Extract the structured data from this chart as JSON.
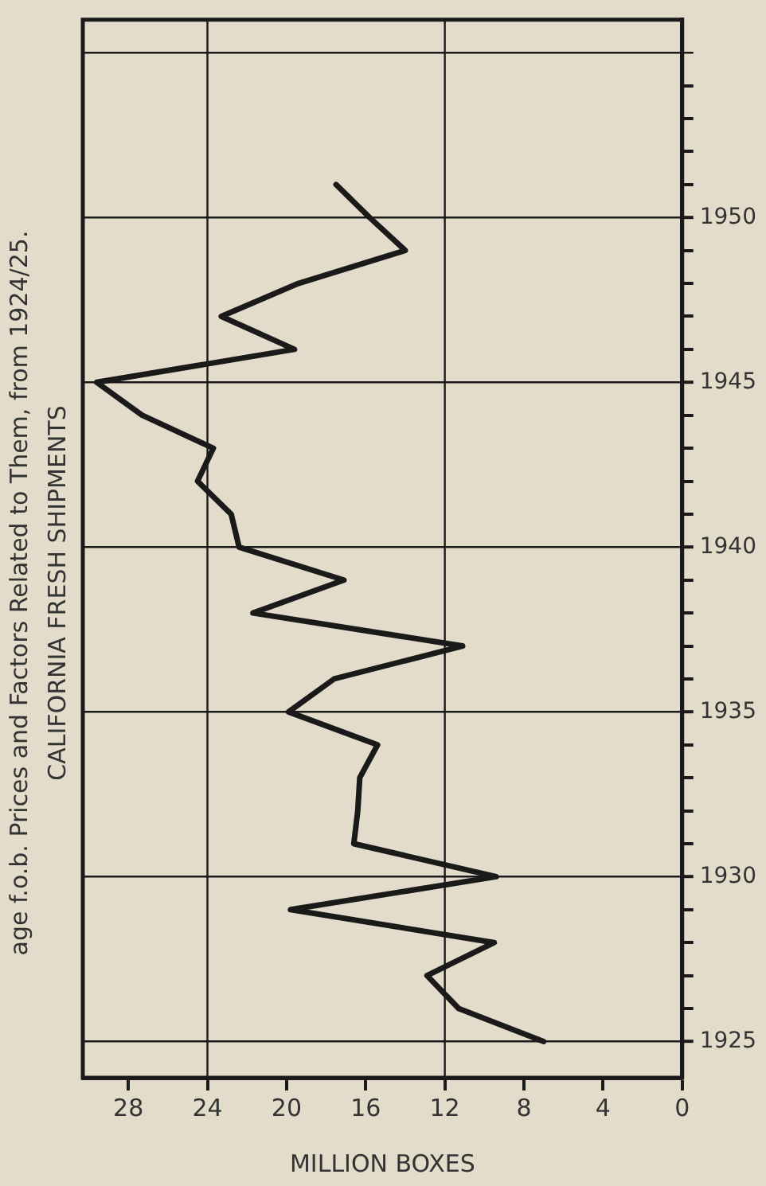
{
  "chart_data": {
    "type": "line",
    "title": "CALIFORNIA FRESH SHIPMENTS",
    "xlabel": "MILLION BOXES",
    "annotations": [
      "age f.o.b. Prices and Factors Related to Them, from 1924/25."
    ],
    "x": [
      7.0,
      11.3,
      12.9,
      9.5,
      19.8,
      9.4,
      16.6,
      16.4,
      16.3,
      15.4,
      19.9,
      17.6,
      11.1,
      21.7,
      17.1,
      22.4,
      22.8,
      24.5,
      23.7,
      27.3,
      29.6,
      19.6,
      23.3,
      19.4,
      14.0,
      15.8,
      17.5
    ],
    "series": [
      {
        "color": "#1a1a1a",
        "values": [
          1925,
          1926,
          1927,
          1928,
          1929,
          1930,
          1931,
          1932,
          1933,
          1934,
          1935,
          1936,
          1937,
          1938,
          1939,
          1940,
          1941,
          1942,
          1943,
          1944,
          1945,
          1946,
          1947,
          1948,
          1949,
          1950,
          1951
        ]
      }
    ],
    "xlim": [
      30.3,
      0
    ],
    "xticks": [
      0,
      4,
      8,
      12,
      16,
      20,
      24,
      28
    ],
    "ylim": [
      1923.9,
      1956
    ],
    "yticks": [
      1925,
      {
        "value": 1926,
        "label": null
      },
      {
        "value": 1927,
        "label": null
      },
      {
        "value": 1928,
        "label": null
      },
      {
        "value": 1929,
        "label": null
      },
      1930,
      {
        "value": 1931,
        "label": null
      },
      {
        "value": 1932,
        "label": null
      },
      {
        "value": 1933,
        "label": null
      },
      {
        "value": 1934,
        "label": null
      },
      1935,
      {
        "value": 1936,
        "label": null
      },
      {
        "value": 1937,
        "label": null
      },
      {
        "value": 1938,
        "label": null
      },
      {
        "value": 1939,
        "label": null
      },
      1940,
      {
        "value": 1941,
        "label": null
      },
      {
        "value": 1942,
        "label": null
      },
      {
        "value": 1943,
        "label": null
      },
      {
        "value": 1944,
        "label": null
      },
      1945,
      {
        "value": 1946,
        "label": null
      },
      {
        "value": 1947,
        "label": null
      },
      {
        "value": 1948,
        "label": null
      },
      {
        "value": 1949,
        "label": null
      },
      1950,
      {
        "value": 1951,
        "label": null
      },
      {
        "value": 1952,
        "label": null
      },
      {
        "value": 1953,
        "label": null
      },
      {
        "value": 1954,
        "label": null
      }
    ],
    "grid": "y",
    "legend": false,
    "marker": "none",
    "line_style": "solid",
    "ref_lines": [
      {
        "axis": "x",
        "value": 12,
        "color": "#1a1a1a"
      },
      {
        "axis": "x",
        "value": 24,
        "color": "#1a1a1a"
      },
      {
        "axis": "y",
        "value": 1955,
        "color": "#1a1a1a"
      }
    ]
  }
}
